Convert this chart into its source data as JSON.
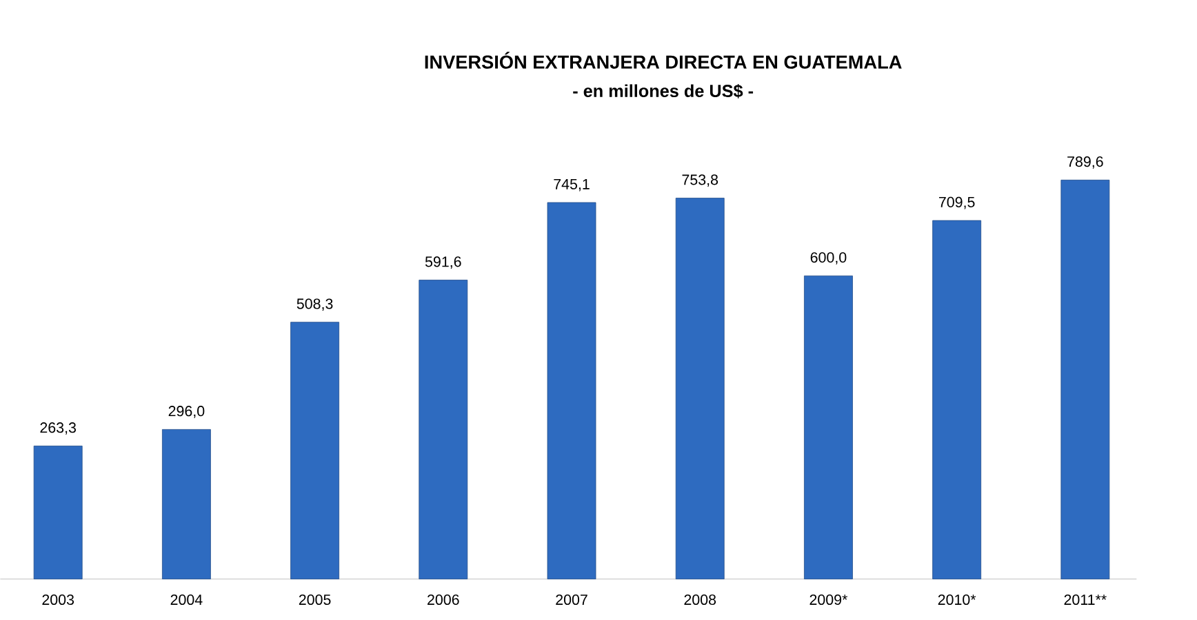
{
  "chart_data": {
    "type": "bar",
    "title": "INVERSIÓN EXTRANJERA DIRECTA EN GUATEMALA",
    "subtitle": "- en millones de US$ -",
    "categories": [
      "2003",
      "2004",
      "2005",
      "2006",
      "2007",
      "2008",
      "2009*",
      "2010*",
      "2011**"
    ],
    "values": [
      263.3,
      296.0,
      508.3,
      591.6,
      745.1,
      753.8,
      600.0,
      709.5,
      789.6
    ],
    "value_labels": [
      "263,3",
      "296,0",
      "508,3",
      "591,6",
      "745,1",
      "753,8",
      "600,0",
      "709,5",
      "789,6"
    ],
    "color": "#2e6bc0",
    "tick_labels": "x"
  }
}
